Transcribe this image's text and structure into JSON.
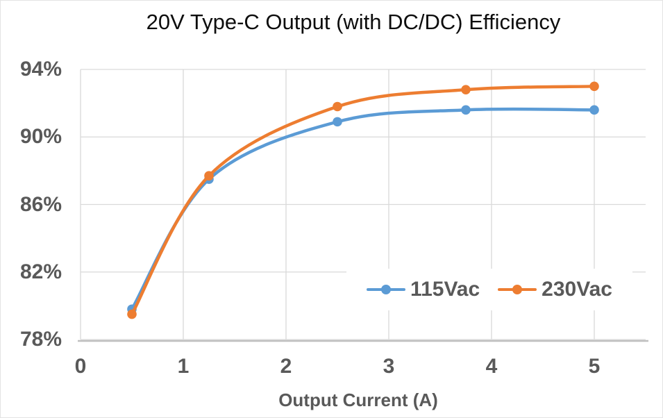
{
  "title": "20V Type-C Output (with DC/DC) Efficiency",
  "chart_data": {
    "type": "line",
    "title": "20V Type-C Output (with DC/DC) Efficiency",
    "x": [
      0.5,
      1.25,
      2.5,
      3.75,
      5
    ],
    "series": [
      {
        "name": "115Vac",
        "color": "#5B9BD5",
        "values": [
          79.8,
          87.5,
          90.9,
          91.6,
          91.6
        ]
      },
      {
        "name": "230Vac",
        "color": "#ED7D31",
        "values": [
          79.5,
          87.7,
          91.8,
          92.8,
          93.0
        ]
      }
    ],
    "xlabel": "Output Current (A)",
    "ylabel": "",
    "xlim": [
      0,
      5.5
    ],
    "ylim": [
      78,
      94
    ],
    "x_ticks": [
      0,
      1,
      2,
      3,
      4,
      5
    ],
    "y_ticks": [
      "94%",
      "90%",
      "86%",
      "82%",
      "78%"
    ],
    "y_tick_values": [
      94,
      90,
      86,
      82,
      78
    ],
    "grid": true,
    "smooth": true,
    "legend_position": "inside-bottom-right"
  },
  "colors": {
    "grid": "#D9D9D9",
    "axis": "#BFBFBF",
    "tick_label": "#595959",
    "title_text": "#0D0D0D",
    "background": "#FFFFFF"
  }
}
